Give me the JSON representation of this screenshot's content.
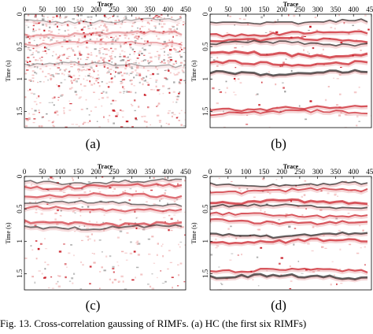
{
  "axes": {
    "x_title": "Trace",
    "y_title": "Time (s)",
    "x_ticks": [
      "0",
      "50",
      "100",
      "150",
      "200",
      "250",
      "300",
      "350",
      "400",
      "450"
    ],
    "y_ticks": [
      "0",
      "0.5",
      "1",
      "1.5"
    ]
  },
  "panels": [
    {
      "label": "(a)",
      "style": "noisy"
    },
    {
      "label": "(b)",
      "style": "clean"
    },
    {
      "label": "(c)",
      "style": "medium"
    },
    {
      "label": "(d)",
      "style": "clean2"
    }
  ],
  "caption": "Fig. 13.  Cross-correlation gaussing of RIMFs. (a) HC (the first six RIMFs)",
  "colors": {
    "red": "#c8141e",
    "dark": "#1a1a1a",
    "pink": "#f0b4b4"
  }
}
